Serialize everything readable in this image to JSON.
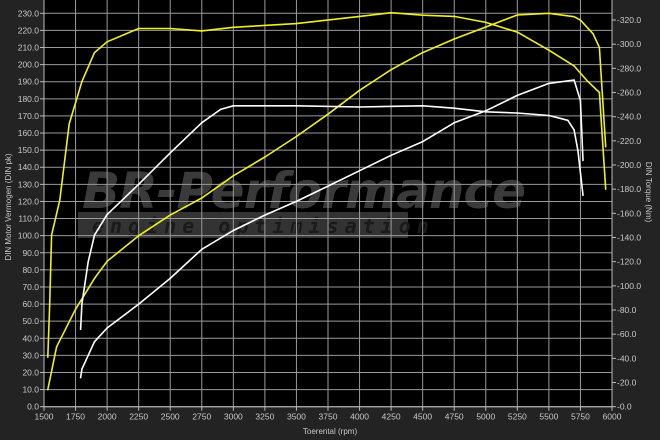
{
  "chart_data": {
    "type": "line",
    "xlabel": "Toerental (rpm)",
    "ylabel": "DIN Motor Vermogen (DIN pk)",
    "y2label": "DIN Torque (Nm)",
    "xlim": [
      1500,
      6000
    ],
    "ylim": [
      0,
      230
    ],
    "y2lim": [
      0,
      320
    ],
    "xticks": [
      1500,
      1750,
      2000,
      2250,
      2500,
      2750,
      3000,
      3250,
      3500,
      3750,
      4000,
      4250,
      4500,
      4750,
      5000,
      5250,
      5500,
      5750,
      6000
    ],
    "yticks": [
      "0.0",
      "10.0",
      "20.0",
      "30.0",
      "40.0",
      "50.0",
      "60.0",
      "70.0",
      "80.0",
      "90.0",
      "100.0",
      "110.0",
      "120.0",
      "130.0",
      "140.0",
      "150.0",
      "160.0",
      "170.0",
      "180.0",
      "190.0",
      "200.0",
      "210.0",
      "220.0",
      "230.0"
    ],
    "y2ticks": [
      "0.0",
      "20.0",
      "40.0",
      "60.0",
      "80.0",
      "100.0",
      "120.0",
      "140.0",
      "160.0",
      "180.0",
      "200.0",
      "220.0",
      "240.0",
      "260.0",
      "280.0",
      "300.0",
      "320.0"
    ],
    "grid": true,
    "background": "#000000",
    "series": [
      {
        "axis": "left",
        "color": "#f0f020",
        "points": [
          [
            1530,
            10
          ],
          [
            1600,
            35
          ],
          [
            1750,
            57
          ],
          [
            1900,
            75
          ],
          [
            2000,
            85
          ],
          [
            2250,
            100
          ],
          [
            2500,
            112
          ],
          [
            2750,
            122
          ],
          [
            3000,
            135
          ],
          [
            3250,
            146
          ],
          [
            3500,
            158
          ],
          [
            3750,
            171
          ],
          [
            4000,
            185
          ],
          [
            4250,
            197
          ],
          [
            4500,
            207
          ],
          [
            4750,
            215
          ],
          [
            5000,
            222
          ],
          [
            5250,
            229
          ],
          [
            5500,
            230
          ],
          [
            5700,
            228
          ],
          [
            5750,
            226
          ],
          [
            5850,
            218
          ],
          [
            5900,
            210
          ],
          [
            5950,
            152
          ]
        ]
      },
      {
        "axis": "right",
        "color": "#f0f020",
        "points": [
          [
            1530,
            41
          ],
          [
            1545,
            85
          ],
          [
            1560,
            142
          ],
          [
            1625,
            171
          ],
          [
            1700,
            234
          ],
          [
            1800,
            269
          ],
          [
            1900,
            293
          ],
          [
            2000,
            302
          ],
          [
            2250,
            313
          ],
          [
            2500,
            313
          ],
          [
            2750,
            311
          ],
          [
            3000,
            314
          ],
          [
            3500,
            317
          ],
          [
            4000,
            323
          ],
          [
            4250,
            326
          ],
          [
            4500,
            324
          ],
          [
            4750,
            323
          ],
          [
            5000,
            318
          ],
          [
            5250,
            310
          ],
          [
            5500,
            295
          ],
          [
            5700,
            282
          ],
          [
            5800,
            270
          ],
          [
            5900,
            260
          ],
          [
            5950,
            180
          ]
        ]
      },
      {
        "axis": "left",
        "color": "#ffffff",
        "points": [
          [
            1790,
            17
          ],
          [
            1800,
            22
          ],
          [
            1900,
            38
          ],
          [
            2000,
            46
          ],
          [
            2250,
            60
          ],
          [
            2500,
            75
          ],
          [
            2750,
            92
          ],
          [
            3000,
            103
          ],
          [
            3250,
            112
          ],
          [
            3500,
            120
          ],
          [
            3750,
            129
          ],
          [
            4000,
            138
          ],
          [
            4250,
            147
          ],
          [
            4500,
            155
          ],
          [
            4750,
            166
          ],
          [
            5000,
            173
          ],
          [
            5250,
            182
          ],
          [
            5500,
            189
          ],
          [
            5700,
            191
          ],
          [
            5750,
            179
          ],
          [
            5770,
            144
          ]
        ]
      },
      {
        "axis": "right",
        "color": "#ffffff",
        "points": [
          [
            1790,
            64
          ],
          [
            1800,
            85
          ],
          [
            1850,
            120
          ],
          [
            1900,
            142
          ],
          [
            2000,
            159
          ],
          [
            2250,
            184
          ],
          [
            2500,
            210
          ],
          [
            2750,
            235
          ],
          [
            2900,
            246
          ],
          [
            3000,
            249
          ],
          [
            3500,
            249
          ],
          [
            4000,
            248
          ],
          [
            4500,
            249
          ],
          [
            4750,
            247
          ],
          [
            5000,
            244
          ],
          [
            5250,
            243
          ],
          [
            5500,
            241
          ],
          [
            5650,
            237
          ],
          [
            5700,
            229
          ],
          [
            5730,
            212
          ],
          [
            5770,
            175
          ]
        ]
      }
    ]
  },
  "watermark": {
    "title": "BR-Performance",
    "subtitle": "engine optimisation"
  }
}
